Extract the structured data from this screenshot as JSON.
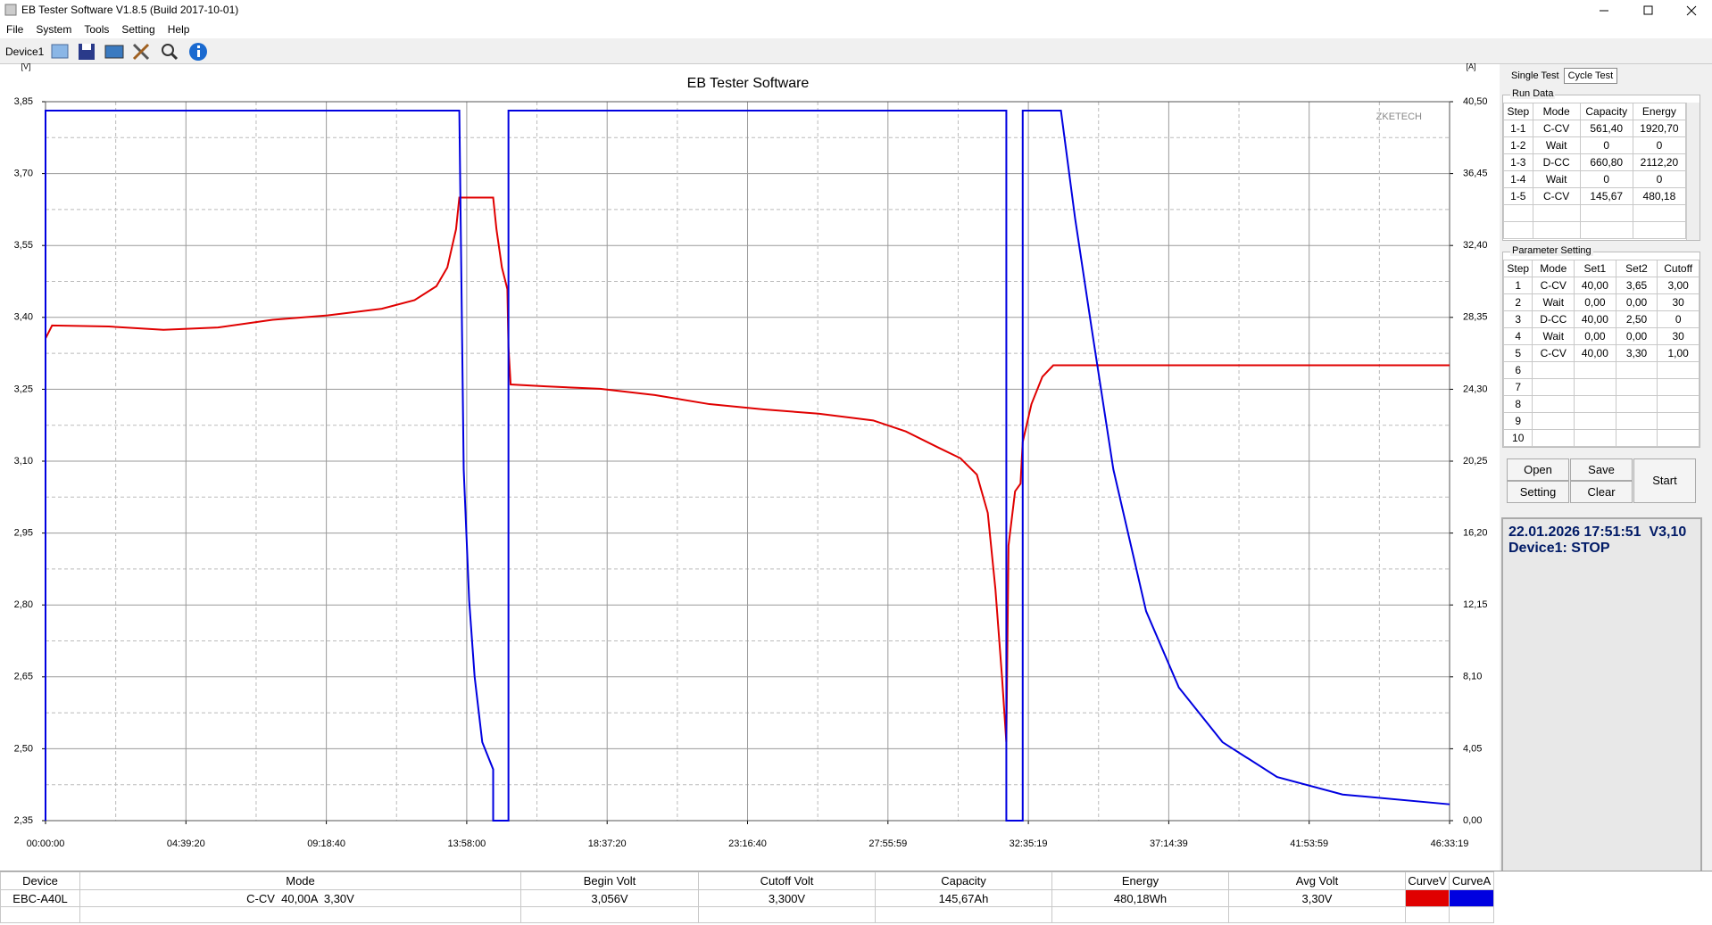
{
  "window": {
    "title": "EB Tester Software V1.8.5 (Build 2017-10-01)"
  },
  "menu": [
    "File",
    "System",
    "Tools",
    "Setting",
    "Help"
  ],
  "toolbar": {
    "device": "Device1"
  },
  "chart_data": {
    "type": "line",
    "title": "EB Tester Software",
    "watermark": "ZKETECH",
    "y_label": "[V]",
    "y2_label": "[A]",
    "xlim": [
      0,
      167599
    ],
    "xticks": [
      {
        "value": 0,
        "label": "00:00:00"
      },
      {
        "value": 16760,
        "label": "04:39:20"
      },
      {
        "value": 33520,
        "label": "09:18:40"
      },
      {
        "value": 50280,
        "label": "13:58:00"
      },
      {
        "value": 67040,
        "label": "18:37:20"
      },
      {
        "value": 83800,
        "label": "23:16:40"
      },
      {
        "value": 100559,
        "label": "27:55:59"
      },
      {
        "value": 117319,
        "label": "32:35:19"
      },
      {
        "value": 134079,
        "label": "37:14:39"
      },
      {
        "value": 150839,
        "label": "41:53:59"
      },
      {
        "value": 167599,
        "label": "46:33:19"
      }
    ],
    "ylim": [
      2.35,
      3.85
    ],
    "yticks": [
      {
        "value": 2.35,
        "label": "2,35"
      },
      {
        "value": 2.5,
        "label": "2,50"
      },
      {
        "value": 2.65,
        "label": "2,65"
      },
      {
        "value": 2.8,
        "label": "2,80"
      },
      {
        "value": 2.95,
        "label": "2,95"
      },
      {
        "value": 3.1,
        "label": "3,10"
      },
      {
        "value": 3.25,
        "label": "3,25"
      },
      {
        "value": 3.4,
        "label": "3,40"
      },
      {
        "value": 3.55,
        "label": "3,55"
      },
      {
        "value": 3.7,
        "label": "3,70"
      },
      {
        "value": 3.85,
        "label": "3,85"
      }
    ],
    "y2lim": [
      0,
      40.5
    ],
    "y2ticks": [
      {
        "value": 0,
        "label": "0,00"
      },
      {
        "value": 4.05,
        "label": "4,05"
      },
      {
        "value": 8.1,
        "label": "8,10"
      },
      {
        "value": 12.15,
        "label": "12,15"
      },
      {
        "value": 16.2,
        "label": "16,20"
      },
      {
        "value": 20.25,
        "label": "20,25"
      },
      {
        "value": 24.3,
        "label": "24,30"
      },
      {
        "value": 28.35,
        "label": "28,35"
      },
      {
        "value": 32.4,
        "label": "32,40"
      },
      {
        "value": 36.45,
        "label": "36,45"
      },
      {
        "value": 40.5,
        "label": "40,50"
      }
    ],
    "grid": true,
    "series": [
      {
        "name": "CurveV",
        "color": "#e00000",
        "x": [
          0,
          782,
          7559,
          14076,
          20592,
          27109,
          33625,
          40142,
          44052,
          46658,
          47962,
          49004,
          49395,
          53435,
          53826,
          54478,
          55130,
          55260,
          55521,
          59692,
          66208,
          72725,
          79241,
          85758,
          92274,
          98791,
          102700,
          106610,
          109217,
          111172,
          112475,
          113387,
          114169,
          114690,
          114951,
          115733,
          116385,
          116645,
          117688,
          118991,
          120295,
          167599
        ],
        "values": [
          3.356,
          3.383,
          3.381,
          3.374,
          3.379,
          3.395,
          3.404,
          3.418,
          3.436,
          3.465,
          3.504,
          3.584,
          3.65,
          3.65,
          3.584,
          3.504,
          3.459,
          3.338,
          3.26,
          3.256,
          3.251,
          3.238,
          3.219,
          3.208,
          3.199,
          3.185,
          3.162,
          3.128,
          3.106,
          3.072,
          2.992,
          2.833,
          2.651,
          2.514,
          2.924,
          3.037,
          3.053,
          3.14,
          3.219,
          3.276,
          3.3,
          3.3
        ]
      },
      {
        "name": "CurveA",
        "color": "#0000e0",
        "axis": "y2",
        "x": [
          0,
          0,
          49395,
          49917,
          50569,
          51221,
          52133,
          53435,
          53435,
          55260,
          55260,
          114690,
          114690,
          116645,
          116645,
          121207,
          122901,
          124857,
          127463,
          131373,
          135283,
          140496,
          147012,
          154832,
          167599
        ],
        "values": [
          0,
          40,
          40,
          19.79,
          12.41,
          8.11,
          4.42,
          2.89,
          0,
          0,
          40,
          40,
          0,
          0,
          40,
          40,
          33.92,
          27.78,
          19.79,
          11.8,
          7.5,
          4.42,
          2.46,
          1.47,
          0.92
        ]
      }
    ]
  },
  "tabs": [
    "Single Test",
    "Cycle Test"
  ],
  "run_data": {
    "title": "Run Data",
    "columns": [
      "Step",
      "Mode",
      "Capacity",
      "Energy"
    ],
    "rows": [
      [
        "1-1",
        "C-CV",
        "561,40",
        "1920,70"
      ],
      [
        "1-2",
        "Wait",
        "0",
        "0"
      ],
      [
        "1-3",
        "D-CC",
        "660,80",
        "2112,20"
      ],
      [
        "1-4",
        "Wait",
        "0",
        "0"
      ],
      [
        "1-5",
        "C-CV",
        "145,67",
        "480,18"
      ]
    ]
  },
  "parameter_setting": {
    "title": "Parameter Setting",
    "columns": [
      "Step",
      "Mode",
      "Set1",
      "Set2",
      "Cutoff"
    ],
    "rows": [
      [
        "1",
        "C-CV",
        "40,00",
        "3,65",
        "3,00"
      ],
      [
        "2",
        "Wait",
        "0,00",
        "0,00",
        "30"
      ],
      [
        "3",
        "D-CC",
        "40,00",
        "2,50",
        "0"
      ],
      [
        "4",
        "Wait",
        "0,00",
        "0,00",
        "30"
      ],
      [
        "5",
        "C-CV",
        "40,00",
        "3,30",
        "1,00"
      ],
      [
        "6"
      ],
      [
        "7"
      ],
      [
        "8"
      ],
      [
        "9"
      ],
      [
        "10"
      ]
    ]
  },
  "buttons": {
    "open": "Open",
    "setting": "Setting",
    "save": "Save",
    "clear": "Clear",
    "start": "Start"
  },
  "status": {
    "line1": "22.01.2026 17:51:51  V3,10",
    "line2": "Device1: STOP"
  },
  "summary": {
    "columns": [
      "Device",
      "Mode",
      "Begin Volt",
      "Cutoff Volt",
      "Capacity",
      "Energy",
      "Avg Volt",
      "CurveV",
      "CurveA"
    ],
    "row": [
      "EBC-A40L",
      "C-CV  40,00A  3,30V",
      "3,056V",
      "3,300V",
      "145,67Ah",
      "480,18Wh",
      "3,30V"
    ]
  }
}
